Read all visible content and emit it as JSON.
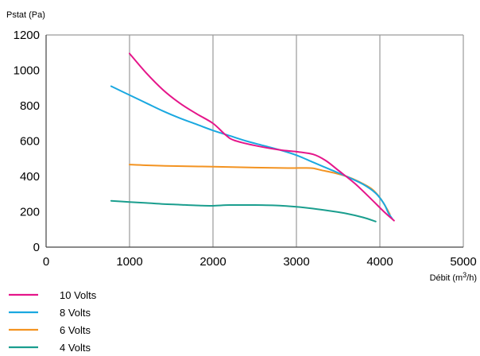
{
  "chart_data": {
    "type": "line",
    "title": "",
    "ylabel": "Pstat (Pa)",
    "xlabel": "Débit (m³/h)",
    "xlim": [
      0,
      5000
    ],
    "ylim": [
      0,
      1200
    ],
    "xticks": [
      0,
      1000,
      2000,
      3000,
      4000,
      5000
    ],
    "yticks": [
      0,
      200,
      400,
      600,
      800,
      1000,
      1200
    ],
    "grid": "vertical",
    "legend_position": "bottom-left",
    "series": [
      {
        "name": "10 Volts",
        "color": "#e5168a",
        "points": [
          [
            1000,
            1095
          ],
          [
            1200,
            985
          ],
          [
            1400,
            890
          ],
          [
            1600,
            815
          ],
          [
            1800,
            755
          ],
          [
            2000,
            700
          ],
          [
            2150,
            635
          ],
          [
            2250,
            605
          ],
          [
            2500,
            575
          ],
          [
            2800,
            550
          ],
          [
            3000,
            540
          ],
          [
            3200,
            525
          ],
          [
            3350,
            490
          ],
          [
            3500,
            435
          ],
          [
            3700,
            360
          ],
          [
            3900,
            270
          ],
          [
            4050,
            200
          ],
          [
            4170,
            150
          ]
        ]
      },
      {
        "name": "8 Volts",
        "color": "#1aa8e0",
        "points": [
          [
            780,
            910
          ],
          [
            1000,
            860
          ],
          [
            1200,
            815
          ],
          [
            1400,
            770
          ],
          [
            1600,
            730
          ],
          [
            1800,
            695
          ],
          [
            2000,
            660
          ],
          [
            2200,
            630
          ],
          [
            2400,
            600
          ],
          [
            2600,
            575
          ],
          [
            2800,
            550
          ],
          [
            3000,
            520
          ],
          [
            3200,
            480
          ],
          [
            3400,
            440
          ],
          [
            3600,
            400
          ],
          [
            3800,
            355
          ],
          [
            3950,
            305
          ],
          [
            4050,
            245
          ],
          [
            4100,
            195
          ],
          [
            4150,
            160
          ]
        ]
      },
      {
        "name": "6 Volts",
        "color": "#f39321",
        "points": [
          [
            1000,
            467
          ],
          [
            1200,
            463
          ],
          [
            1500,
            459
          ],
          [
            2000,
            455
          ],
          [
            2500,
            450
          ],
          [
            2900,
            447
          ],
          [
            3100,
            448
          ],
          [
            3200,
            446
          ],
          [
            3300,
            435
          ],
          [
            3450,
            420
          ],
          [
            3600,
            400
          ],
          [
            3750,
            370
          ],
          [
            3900,
            330
          ],
          [
            4000,
            280
          ],
          [
            4080,
            220
          ],
          [
            4120,
            185
          ]
        ]
      },
      {
        "name": "4 Volts",
        "color": "#1a9e8e",
        "points": [
          [
            780,
            262
          ],
          [
            1000,
            255
          ],
          [
            1200,
            250
          ],
          [
            1400,
            244
          ],
          [
            1600,
            240
          ],
          [
            1800,
            236
          ],
          [
            2000,
            234
          ],
          [
            2200,
            238
          ],
          [
            2500,
            238
          ],
          [
            2800,
            235
          ],
          [
            3000,
            228
          ],
          [
            3200,
            218
          ],
          [
            3400,
            205
          ],
          [
            3600,
            190
          ],
          [
            3800,
            168
          ],
          [
            3950,
            145
          ]
        ]
      }
    ]
  }
}
